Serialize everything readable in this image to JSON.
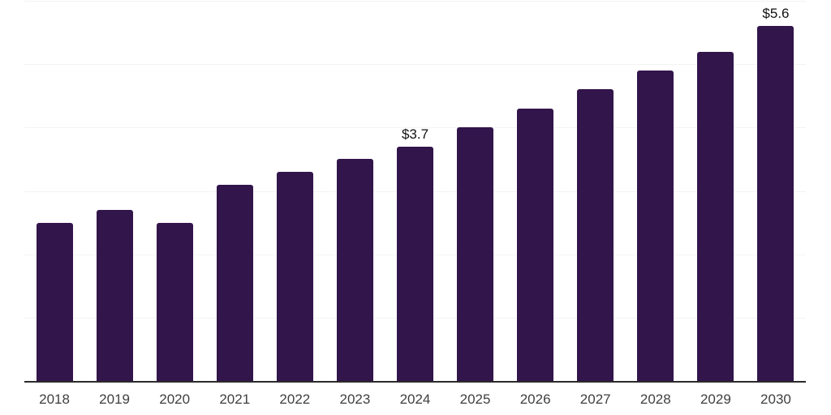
{
  "chart_data": {
    "type": "bar",
    "title": "",
    "xlabel": "",
    "ylabel": "",
    "categories": [
      "2018",
      "2019",
      "2020",
      "2021",
      "2022",
      "2023",
      "2024",
      "2025",
      "2026",
      "2027",
      "2028",
      "2029",
      "2030"
    ],
    "values": [
      2.5,
      2.7,
      2.5,
      3.1,
      3.3,
      3.5,
      3.7,
      4.0,
      4.3,
      4.6,
      4.9,
      5.2,
      5.6
    ],
    "data_labels": [
      {
        "category": "2024",
        "text": "$3.7"
      },
      {
        "category": "2030",
        "text": "$5.6"
      }
    ],
    "ylim": [
      0,
      6
    ],
    "gridline_step": 1,
    "grid": true,
    "legend": false,
    "legend_position": "none"
  },
  "colors": {
    "background": "#ffffff",
    "bar": "#32154b",
    "gridline": "#f3f3f3",
    "axis_line": "#2b2b2b",
    "tick_label": "#3f3f3f",
    "data_label": "#111111"
  }
}
